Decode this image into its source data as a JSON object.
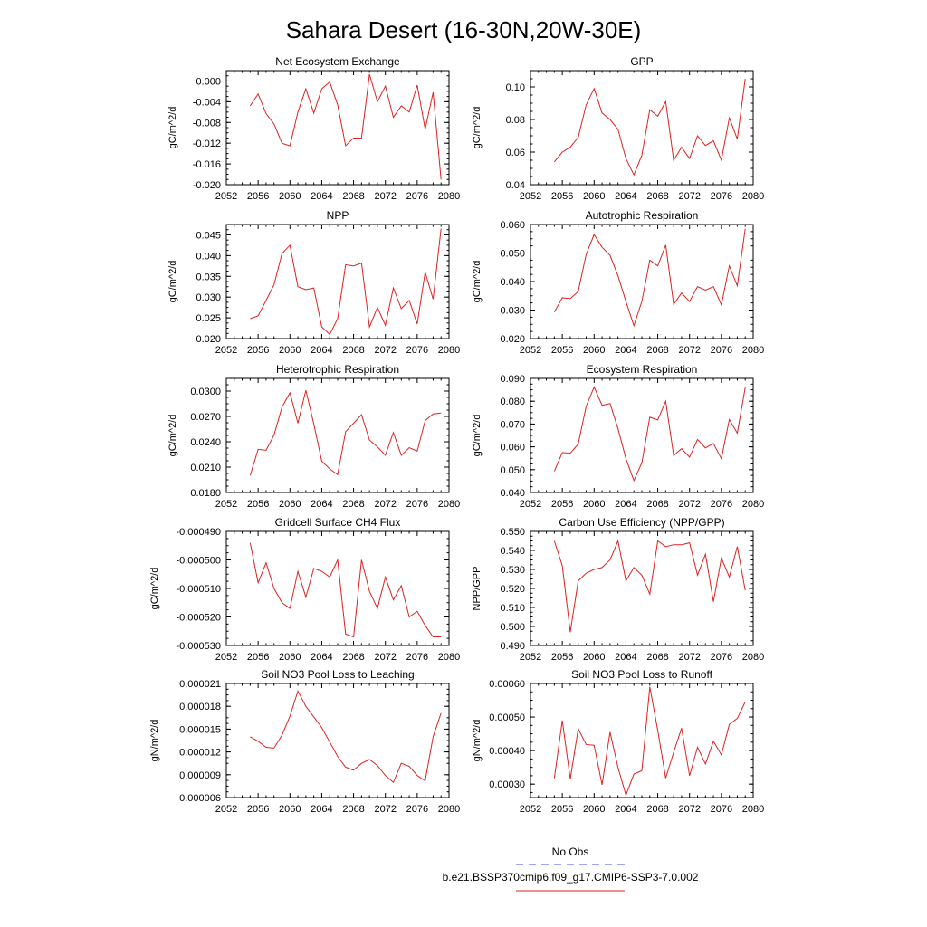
{
  "figure": {
    "title": "Sahara Desert (16-30N,20W-30E)",
    "legend": [
      {
        "label": "No Obs",
        "color": "#4444ff",
        "dash": true
      },
      {
        "label": "b.e21.BSSP370cmip6.f09_g17.CMIP6-SSP3-7.0.002",
        "color": "#dd2222",
        "dash": false
      }
    ]
  },
  "chart_data": [
    {
      "type": "line",
      "title": "Net Ecosystem Exchange",
      "ylabel": "gC/m^2/d",
      "xlim": [
        2052,
        2080
      ],
      "ylim": [
        -0.02,
        0.002
      ],
      "xticks": [
        "2052",
        "2056",
        "2060",
        "2064",
        "2068",
        "2072",
        "2076",
        "2080"
      ],
      "yticks": [
        "0.000",
        "-0.004",
        "-0.008",
        "-0.012",
        "-0.016",
        "-0.020"
      ],
      "ytick_values": [
        0,
        -0.004,
        -0.008,
        -0.012,
        -0.016,
        -0.02
      ],
      "x": [
        2055,
        2056,
        2057,
        2058,
        2059,
        2060,
        2061,
        2062,
        2063,
        2064,
        2065,
        2066,
        2067,
        2068,
        2069,
        2070,
        2071,
        2072,
        2073,
        2074,
        2075,
        2076,
        2077,
        2078,
        2079
      ],
      "values": [
        -0.0048,
        -0.0025,
        -0.0063,
        -0.0083,
        -0.012,
        -0.0125,
        -0.006,
        -0.0015,
        -0.0062,
        -0.0015,
        -0.0002,
        -0.0046,
        -0.0125,
        -0.011,
        -0.011,
        0.0013,
        -0.004,
        -0.001,
        -0.007,
        -0.0048,
        -0.006,
        -0.0008,
        -0.0093,
        -0.0022,
        -0.019
      ]
    },
    {
      "type": "line",
      "title": "GPP",
      "ylabel": "gC/m^2/d",
      "xlim": [
        2052,
        2080
      ],
      "ylim": [
        0.04,
        0.11
      ],
      "xticks": [
        "2052",
        "2056",
        "2060",
        "2064",
        "2068",
        "2072",
        "2076",
        "2080"
      ],
      "yticks": [
        "0.10",
        "0.08",
        "0.06",
        "0.04"
      ],
      "ytick_values": [
        0.1,
        0.08,
        0.06,
        0.04
      ],
      "x": [
        2055,
        2056,
        2057,
        2058,
        2059,
        2060,
        2061,
        2062,
        2063,
        2064,
        2065,
        2066,
        2067,
        2068,
        2069,
        2070,
        2071,
        2072,
        2073,
        2074,
        2075,
        2076,
        2077,
        2078,
        2079
      ],
      "values": [
        0.054,
        0.06,
        0.063,
        0.069,
        0.089,
        0.099,
        0.084,
        0.08,
        0.074,
        0.056,
        0.046,
        0.058,
        0.086,
        0.082,
        0.091,
        0.055,
        0.063,
        0.056,
        0.07,
        0.064,
        0.067,
        0.055,
        0.081,
        0.068,
        0.105
      ]
    },
    {
      "type": "line",
      "title": "NPP",
      "ylabel": "gC/m^2/d",
      "xlim": [
        2052,
        2080
      ],
      "ylim": [
        0.02,
        0.0475
      ],
      "xticks": [
        "2052",
        "2056",
        "2060",
        "2064",
        "2068",
        "2072",
        "2076",
        "2080"
      ],
      "yticks": [
        "0.045",
        "0.040",
        "0.035",
        "0.030",
        "0.025",
        "0.020"
      ],
      "ytick_values": [
        0.045,
        0.04,
        0.035,
        0.03,
        0.025,
        0.02
      ],
      "x": [
        2055,
        2056,
        2057,
        2058,
        2059,
        2060,
        2061,
        2062,
        2063,
        2064,
        2065,
        2066,
        2067,
        2068,
        2069,
        2070,
        2071,
        2072,
        2073,
        2074,
        2075,
        2076,
        2077,
        2078,
        2079
      ],
      "values": [
        0.0248,
        0.0255,
        0.0292,
        0.033,
        0.0405,
        0.0425,
        0.0325,
        0.0318,
        0.0322,
        0.0228,
        0.021,
        0.0248,
        0.0378,
        0.0375,
        0.0382,
        0.0228,
        0.0275,
        0.0232,
        0.0322,
        0.0272,
        0.0292,
        0.0235,
        0.036,
        0.0295,
        0.0465
      ]
    },
    {
      "type": "line",
      "title": "Autotrophic Respiration",
      "ylabel": "gC/m^2/d",
      "xlim": [
        2052,
        2080
      ],
      "ylim": [
        0.02,
        0.06
      ],
      "xticks": [
        "2052",
        "2056",
        "2060",
        "2064",
        "2068",
        "2072",
        "2076",
        "2080"
      ],
      "yticks": [
        "0.060",
        "0.050",
        "0.040",
        "0.030",
        "0.020"
      ],
      "ytick_values": [
        0.06,
        0.05,
        0.04,
        0.03,
        0.02
      ],
      "x": [
        2055,
        2056,
        2057,
        2058,
        2059,
        2060,
        2061,
        2062,
        2063,
        2064,
        2065,
        2066,
        2067,
        2068,
        2069,
        2070,
        2071,
        2072,
        2073,
        2074,
        2075,
        2076,
        2077,
        2078,
        2079
      ],
      "values": [
        0.0293,
        0.0343,
        0.034,
        0.0365,
        0.0495,
        0.0565,
        0.052,
        0.0492,
        0.042,
        0.033,
        0.0245,
        0.033,
        0.0475,
        0.0455,
        0.0528,
        0.032,
        0.036,
        0.033,
        0.0382,
        0.037,
        0.0382,
        0.0318,
        0.0455,
        0.0385,
        0.0585
      ]
    },
    {
      "type": "line",
      "title": "Heterotrophic Respiration",
      "ylabel": "gC/m^2/d",
      "xlim": [
        2052,
        2080
      ],
      "ylim": [
        0.018,
        0.0315
      ],
      "xticks": [
        "2052",
        "2056",
        "2060",
        "2064",
        "2068",
        "2072",
        "2076",
        "2080"
      ],
      "yticks": [
        "0.0300",
        "0.0270",
        "0.0240",
        "0.0210",
        "0.0180"
      ],
      "ytick_values": [
        0.03,
        0.027,
        0.024,
        0.021,
        0.018
      ],
      "x": [
        2055,
        2056,
        2057,
        2058,
        2059,
        2060,
        2061,
        2062,
        2063,
        2064,
        2065,
        2066,
        2067,
        2068,
        2069,
        2070,
        2071,
        2072,
        2073,
        2074,
        2075,
        2076,
        2077,
        2078,
        2079
      ],
      "values": [
        0.02,
        0.0231,
        0.023,
        0.0248,
        0.0281,
        0.0298,
        0.0262,
        0.0301,
        0.0261,
        0.0217,
        0.0208,
        0.0201,
        0.0252,
        0.0262,
        0.0272,
        0.0242,
        0.0234,
        0.0224,
        0.0251,
        0.0224,
        0.0233,
        0.0229,
        0.0265,
        0.0273,
        0.0274
      ]
    },
    {
      "type": "line",
      "title": "Ecosystem Respiration",
      "ylabel": "gC/m^2/d",
      "xlim": [
        2052,
        2080
      ],
      "ylim": [
        0.04,
        0.09
      ],
      "xticks": [
        "2052",
        "2056",
        "2060",
        "2064",
        "2068",
        "2072",
        "2076",
        "2080"
      ],
      "yticks": [
        "0.090",
        "0.080",
        "0.070",
        "0.060",
        "0.050",
        "0.040"
      ],
      "ytick_values": [
        0.09,
        0.08,
        0.07,
        0.06,
        0.05,
        0.04
      ],
      "x": [
        2055,
        2056,
        2057,
        2058,
        2059,
        2060,
        2061,
        2062,
        2063,
        2064,
        2065,
        2066,
        2067,
        2068,
        2069,
        2070,
        2071,
        2072,
        2073,
        2074,
        2075,
        2076,
        2077,
        2078,
        2079
      ],
      "values": [
        0.0493,
        0.0575,
        0.0572,
        0.0612,
        0.0778,
        0.0862,
        0.0782,
        0.079,
        0.068,
        0.0548,
        0.0452,
        0.053,
        0.073,
        0.0718,
        0.08,
        0.0562,
        0.0592,
        0.0555,
        0.0632,
        0.0595,
        0.0615,
        0.0548,
        0.072,
        0.066,
        0.086
      ]
    },
    {
      "type": "line",
      "title": "Gridcell Surface CH4 Flux",
      "ylabel": "gC/m^2/d",
      "xlim": [
        2052,
        2080
      ],
      "ylim": [
        -0.00053,
        -0.00049
      ],
      "xticks": [
        "2052",
        "2056",
        "2060",
        "2064",
        "2068",
        "2072",
        "2076",
        "2080"
      ],
      "yticks": [
        "-0.000490",
        "-0.000500",
        "-0.000510",
        "-0.000520",
        "-0.000530"
      ],
      "ytick_values": [
        -0.00049,
        -0.0005,
        -0.00051,
        -0.00052,
        -0.00053
      ],
      "x": [
        2055,
        2056,
        2057,
        2058,
        2059,
        2060,
        2061,
        2062,
        2063,
        2064,
        2065,
        2066,
        2067,
        2068,
        2069,
        2070,
        2071,
        2072,
        2073,
        2074,
        2075,
        2076,
        2077,
        2078,
        2079
      ],
      "values": [
        -0.000494,
        -0.000508,
        -0.000501,
        -0.00051,
        -0.000515,
        -0.000517,
        -0.000504,
        -0.000513,
        -0.000503,
        -0.000504,
        -0.000506,
        -0.0005,
        -0.000526,
        -0.000527,
        -0.0005,
        -0.000511,
        -0.000517,
        -0.000506,
        -0.000514,
        -0.000509,
        -0.00052,
        -0.000518,
        -0.000523,
        -0.000527,
        -0.000527
      ]
    },
    {
      "type": "line",
      "title": "Carbon Use Efficiency (NPP/GPP)",
      "ylabel": "NPP/GPP",
      "xlim": [
        2052,
        2080
      ],
      "ylim": [
        0.49,
        0.55
      ],
      "xticks": [
        "2052",
        "2056",
        "2060",
        "2064",
        "2068",
        "2072",
        "2076",
        "2080"
      ],
      "yticks": [
        "0.550",
        "0.540",
        "0.530",
        "0.520",
        "0.510",
        "0.500",
        "0.490"
      ],
      "ytick_values": [
        0.55,
        0.54,
        0.53,
        0.52,
        0.51,
        0.5,
        0.49
      ],
      "x": [
        2055,
        2056,
        2057,
        2058,
        2059,
        2060,
        2061,
        2062,
        2063,
        2064,
        2065,
        2066,
        2067,
        2068,
        2069,
        2070,
        2071,
        2072,
        2073,
        2074,
        2075,
        2076,
        2077,
        2078,
        2079
      ],
      "values": [
        0.545,
        0.532,
        0.497,
        0.524,
        0.528,
        0.53,
        0.531,
        0.535,
        0.545,
        0.524,
        0.531,
        0.527,
        0.517,
        0.545,
        0.542,
        0.543,
        0.543,
        0.544,
        0.527,
        0.538,
        0.513,
        0.536,
        0.526,
        0.542,
        0.519
      ]
    },
    {
      "type": "line",
      "title": "Soil NO3 Pool Loss to Leaching",
      "ylabel": "gN/m^2/d",
      "xlim": [
        2052,
        2080
      ],
      "ylim": [
        6e-06,
        2.1e-05
      ],
      "xticks": [
        "2052",
        "2056",
        "2060",
        "2064",
        "2068",
        "2072",
        "2076",
        "2080"
      ],
      "yticks": [
        "0.000021",
        "0.000018",
        "0.000015",
        "0.000012",
        "0.000009",
        "0.000006"
      ],
      "ytick_values": [
        2.1e-05,
        1.8e-05,
        1.5e-05,
        1.2e-05,
        9e-06,
        6e-06
      ],
      "x": [
        2055,
        2056,
        2057,
        2058,
        2059,
        2060,
        2061,
        2062,
        2063,
        2064,
        2065,
        2066,
        2067,
        2068,
        2069,
        2070,
        2071,
        2072,
        2073,
        2074,
        2075,
        2076,
        2077,
        2078,
        2079
      ],
      "values": [
        1.4e-05,
        1.34e-05,
        1.26e-05,
        1.25e-05,
        1.42e-05,
        1.67e-05,
        2e-05,
        1.8e-05,
        1.66e-05,
        1.52e-05,
        1.33e-05,
        1.14e-05,
        1e-05,
        9.6e-06,
        1.05e-05,
        1.1e-05,
        1.02e-05,
        8.9e-06,
        8e-06,
        1.05e-05,
        1.01e-05,
        8.9e-06,
        8.2e-06,
        1.4e-05,
        1.71e-05
      ]
    },
    {
      "type": "line",
      "title": "Soil NO3 Pool Loss to Runoff",
      "ylabel": "gN/m^2/d",
      "xlim": [
        2052,
        2080
      ],
      "ylim": [
        0.00026,
        0.0006
      ],
      "xticks": [
        "2052",
        "2056",
        "2060",
        "2064",
        "2068",
        "2072",
        "2076",
        "2080"
      ],
      "yticks": [
        "0.00060",
        "0.00050",
        "0.00040",
        "0.00030"
      ],
      "ytick_values": [
        0.0006,
        0.0005,
        0.0004,
        0.0003
      ],
      "x": [
        2055,
        2056,
        2057,
        2058,
        2059,
        2060,
        2061,
        2062,
        2063,
        2064,
        2065,
        2066,
        2067,
        2068,
        2069,
        2070,
        2071,
        2072,
        2073,
        2074,
        2075,
        2076,
        2077,
        2078,
        2079
      ],
      "values": [
        0.000318,
        0.00049,
        0.000315,
        0.000465,
        0.000418,
        0.000416,
        0.000298,
        0.000455,
        0.00035,
        0.000267,
        0.00033,
        0.00034,
        0.00059,
        0.00046,
        0.000318,
        0.000395,
        0.000467,
        0.000325,
        0.00041,
        0.00036,
        0.000428,
        0.000387,
        0.000478,
        0.000496,
        0.000545
      ]
    }
  ]
}
